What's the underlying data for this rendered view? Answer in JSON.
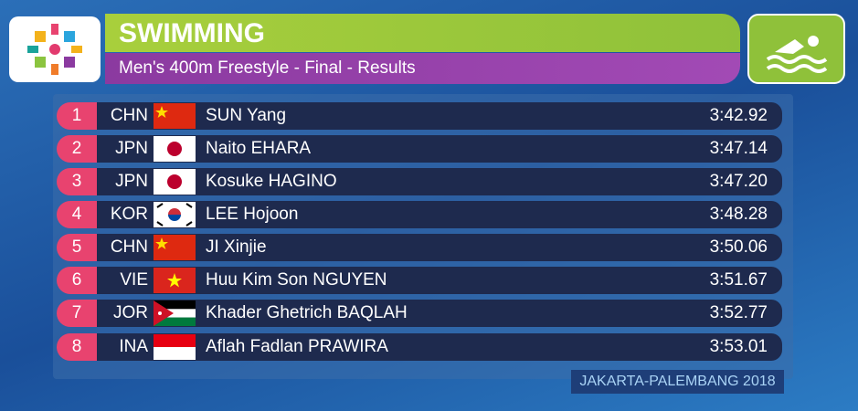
{
  "header": {
    "title": "SWIMMING",
    "subtitle": "Men's 400m Freestyle - Final - Results"
  },
  "table": {
    "rows": [
      [
        "1",
        "CHN",
        "SUN Yang",
        "3:42.92"
      ],
      [
        "2",
        "JPN",
        "Naito EHARA",
        "3:47.14"
      ],
      [
        "3",
        "JPN",
        "Kosuke HAGINO",
        "3:47.20"
      ],
      [
        "4",
        "KOR",
        "LEE Hojoon",
        "3:48.28"
      ],
      [
        "5",
        "CHN",
        "JI Xinjie",
        "3:50.06"
      ],
      [
        "6",
        "VIE",
        "Huu Kim Son NGUYEN",
        "3:51.67"
      ],
      [
        "7",
        "JOR",
        "Khader Ghetrich BAQLAH",
        "3:52.77"
      ],
      [
        "8",
        "INA",
        "Aflah Fadlan PRAWIRA",
        "3:53.01"
      ]
    ]
  },
  "footer": {
    "text": "JAKARTA-PALEMBANG 2018"
  }
}
